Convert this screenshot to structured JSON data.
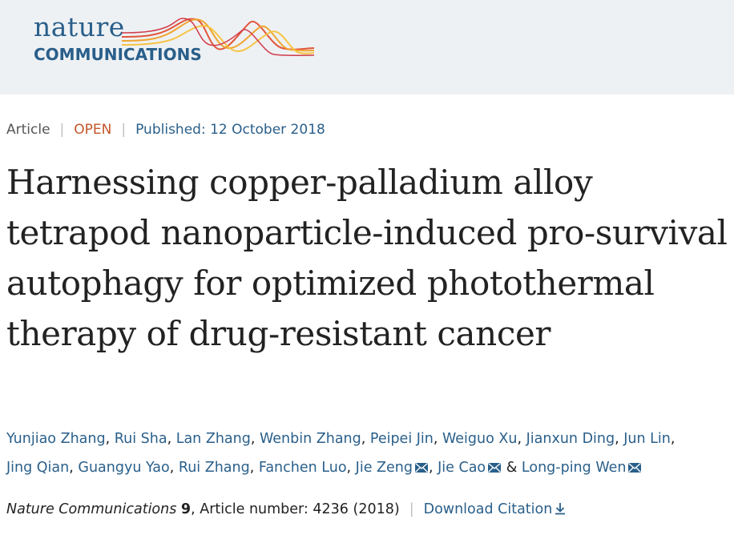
{
  "header": {
    "logo_top": "nature",
    "logo_bottom": "COMMUNICATIONS",
    "brand_color": "#2a5f8a"
  },
  "meta": {
    "type": "Article",
    "access": "OPEN",
    "published": "Published: 12 October 2018"
  },
  "article": {
    "title": "Harnessing copper-palladium alloy tetrapod nanoparticle-induced pro-survival autophagy for optimized photothermal therapy of drug-resistant cancer"
  },
  "authors": [
    {
      "name": "Yunjiao Zhang",
      "sep": ", ",
      "mail": false
    },
    {
      "name": "Rui Sha",
      "sep": ", ",
      "mail": false
    },
    {
      "name": "Lan Zhang",
      "sep": ", ",
      "mail": false
    },
    {
      "name": "Wenbin Zhang",
      "sep": ", ",
      "mail": false
    },
    {
      "name": "Peipei Jin",
      "sep": ", ",
      "mail": false
    },
    {
      "name": "Weiguo Xu",
      "sep": ", ",
      "mail": false
    },
    {
      "name": "Jianxun Ding",
      "sep": ", ",
      "mail": false
    },
    {
      "name": "Jun Lin",
      "sep": ", ",
      "mail": false
    },
    {
      "name": "Jing Qian",
      "sep": ", ",
      "mail": false
    },
    {
      "name": "Guangyu Yao",
      "sep": ", ",
      "mail": false
    },
    {
      "name": "Rui Zhang",
      "sep": ", ",
      "mail": false
    },
    {
      "name": "Fanchen Luo",
      "sep": ", ",
      "mail": false
    },
    {
      "name": "Jie Zeng",
      "sep": ", ",
      "mail": true
    },
    {
      "name": "Jie Cao",
      "sep": " & ",
      "mail": true
    },
    {
      "name": "Long-ping Wen",
      "sep": "",
      "mail": true
    }
  ],
  "citation": {
    "journal": "Nature Communications",
    "volume": "9",
    "article_number": ", Article number: 4236 (2018)",
    "download_label": "Download Citation"
  },
  "icons": {
    "mail": "mail-icon",
    "download": "download-icon"
  }
}
